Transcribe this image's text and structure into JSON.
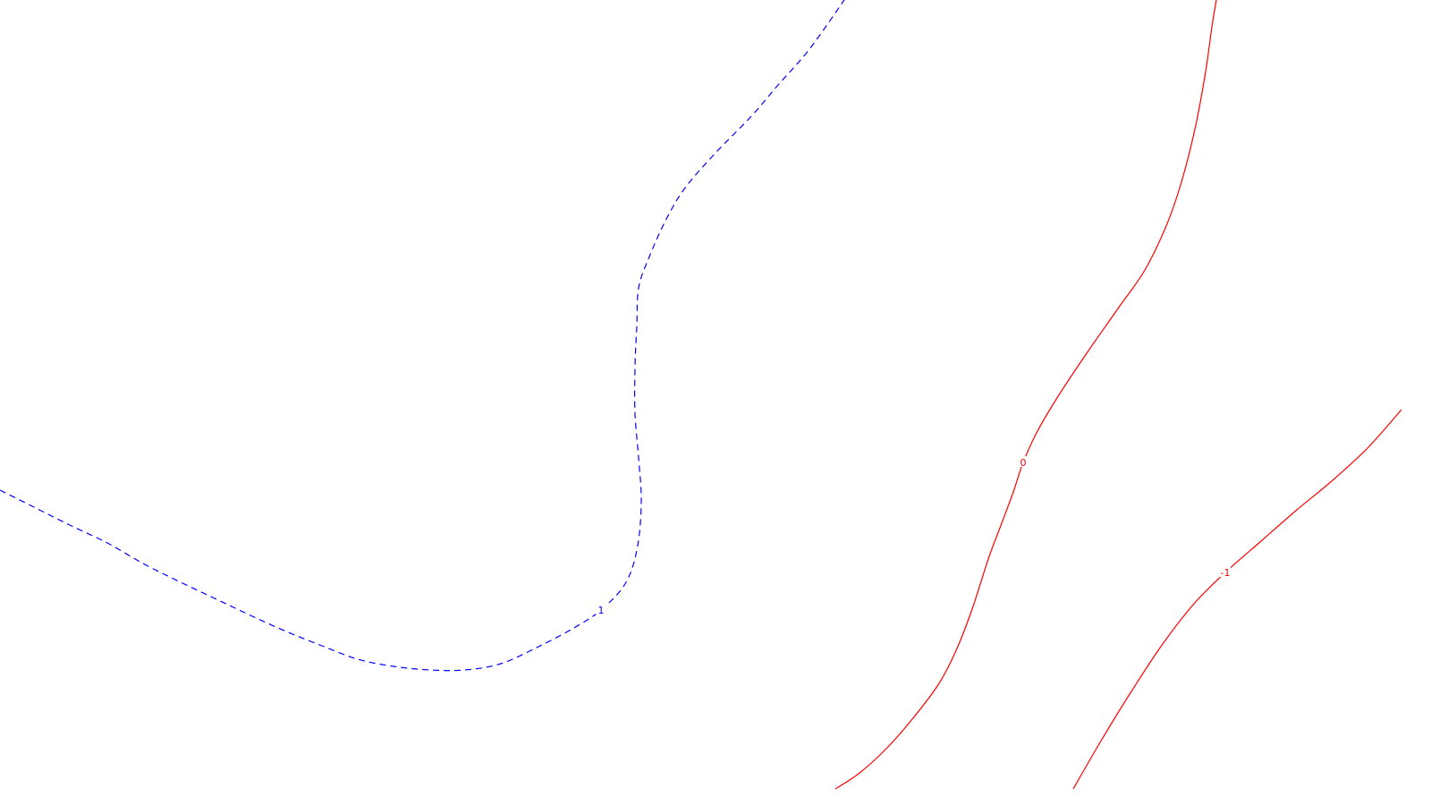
{
  "chart_data": {
    "type": "line",
    "title": "",
    "xlabel": "",
    "ylabel": "",
    "grid": false,
    "colors": {
      "positive": "#0000ff",
      "nonpositive": "#ff0000"
    },
    "series": [
      {
        "level": 1,
        "label": "1",
        "style": "dashed",
        "color": "#0000ff",
        "points": [
          [
            0,
            548
          ],
          [
            40,
            568
          ],
          [
            80,
            588
          ],
          [
            120,
            607
          ],
          [
            160,
            630
          ],
          [
            200,
            650
          ],
          [
            240,
            669
          ],
          [
            280,
            688
          ],
          [
            320,
            706
          ],
          [
            360,
            722
          ],
          [
            400,
            737
          ],
          [
            440,
            745
          ],
          [
            480,
            749
          ],
          [
            520,
            749
          ],
          [
            560,
            742
          ],
          [
            600,
            724
          ],
          [
            640,
            703
          ],
          [
            672,
            682
          ],
          [
            700,
            651
          ],
          [
            713,
            610
          ],
          [
            717,
            560
          ],
          [
            714,
            512
          ],
          [
            710,
            462
          ],
          [
            710,
            410
          ],
          [
            712,
            365
          ],
          [
            714,
            322
          ],
          [
            726,
            287
          ],
          [
            745,
            245
          ],
          [
            766,
            210
          ],
          [
            800,
            171
          ],
          [
            840,
            130
          ],
          [
            870,
            95
          ],
          [
            905,
            55
          ],
          [
            944,
            0
          ]
        ],
        "label_at": [
          672,
          682
        ]
      },
      {
        "level": 0,
        "label": "0",
        "style": "solid",
        "color": "#ff0000",
        "points": [
          [
            934,
            882
          ],
          [
            960,
            865
          ],
          [
            990,
            838
          ],
          [
            1020,
            804
          ],
          [
            1050,
            764
          ],
          [
            1070,
            725
          ],
          [
            1088,
            678
          ],
          [
            1105,
            625
          ],
          [
            1120,
            585
          ],
          [
            1133,
            550
          ],
          [
            1144,
            517
          ],
          [
            1160,
            482
          ],
          [
            1185,
            440
          ],
          [
            1215,
            395
          ],
          [
            1250,
            345
          ],
          [
            1280,
            302
          ],
          [
            1305,
            250
          ],
          [
            1322,
            200
          ],
          [
            1337,
            140
          ],
          [
            1348,
            80
          ],
          [
            1355,
            30
          ],
          [
            1360,
            0
          ]
        ],
        "label_at": [
          1144,
          517
        ]
      },
      {
        "level": -1,
        "label": "-1",
        "style": "solid",
        "color": "#ff0000",
        "points": [
          [
            1200,
            882
          ],
          [
            1230,
            830
          ],
          [
            1265,
            773
          ],
          [
            1300,
            720
          ],
          [
            1335,
            675
          ],
          [
            1370,
            640
          ],
          [
            1410,
            605
          ],
          [
            1450,
            570
          ],
          [
            1490,
            537
          ],
          [
            1530,
            500
          ],
          [
            1567,
            458
          ]
        ],
        "label_at": [
          1370,
          640
        ]
      }
    ]
  }
}
